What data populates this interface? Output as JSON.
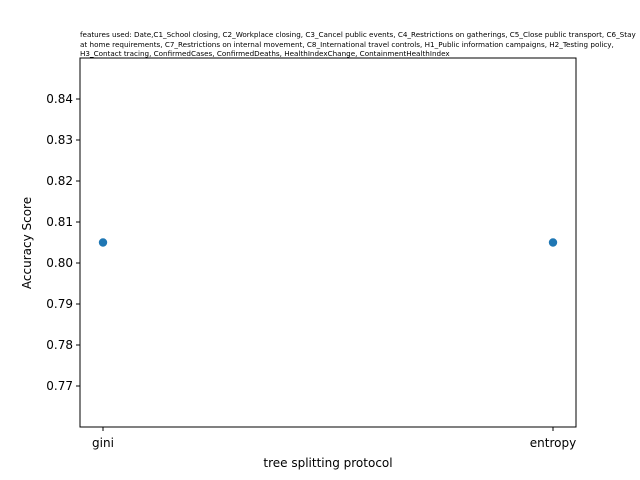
{
  "chart_data": {
    "type": "scatter",
    "title": "features used: Date,C1_School closing, C2_Workplace closing, C3_Cancel public events, C4_Restrictions on gatherings, C5_Close public transport, C6_Stay at home requirements, C7_Restrictions on internal movement, C8_International travel controls, H1_Public information campaigns, H2_Testing policy, H3_Contact tracing, ConfirmedCases, ConfirmedDeaths, HealthIndexChange, ContainmentHealthIndex",
    "xlabel": "tree splitting protocol",
    "ylabel": "Accuracy Score",
    "categories": [
      "gini",
      "entropy"
    ],
    "series": [
      {
        "values": [
          0.805,
          0.805
        ],
        "color": "#1f77b4"
      }
    ],
    "ylim": [
      0.76,
      0.85
    ],
    "yticks": [
      0.77,
      0.78,
      0.79,
      0.8,
      0.81,
      0.82,
      0.83,
      0.84
    ],
    "ytick_labels": [
      "0.77",
      "0.78",
      "0.79",
      "0.80",
      "0.81",
      "0.82",
      "0.83",
      "0.84"
    ],
    "grid": false
  }
}
